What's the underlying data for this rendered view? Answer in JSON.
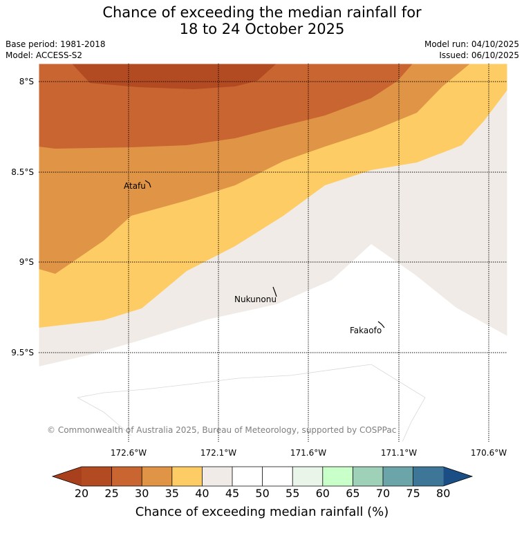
{
  "header": {
    "title_line1": "Chance of exceeding the median rainfall for",
    "title_line2": "18 to 24 October 2025",
    "base_period": "Base period: 1981-2018",
    "model": "Model: ACCESS-S2",
    "model_run": "Model run: 04/10/2025",
    "issued": "Issued: 06/10/2025"
  },
  "map": {
    "latitude_labels": [
      "8°S",
      "8.5°S",
      "9°S",
      "9.5°S"
    ],
    "longitude_labels": [
      "172.6°W",
      "172.1°W",
      "171.6°W",
      "171.1°W",
      "170.6°W"
    ],
    "places": [
      "Atafu",
      "Nukunonu",
      "Fakaofo"
    ],
    "copyright": "© Commonwealth of Australia 2025, Bureau of Meteorology, supported by COSPPac"
  },
  "colorbar": {
    "label": "Chance of exceeding median rainfall (%)",
    "ticks": [
      "20",
      "25",
      "30",
      "35",
      "40",
      "45",
      "50",
      "55",
      "60",
      "65",
      "70",
      "75",
      "80"
    ],
    "colors": {
      "below_20": "#a8401e",
      "c20_25": "#b24b22",
      "c25_30": "#c96531",
      "c30_35": "#e09446",
      "c35_40": "#fecc65",
      "c40_45": "#f0ebe6",
      "c45_55": "#ffffff",
      "c55_60": "#e9f5e9",
      "c60_65": "#c9ffc9",
      "c65_70": "#9fd0b8",
      "c70_75": "#6ba5a9",
      "c75_80": "#3e7697",
      "above_80": "#1a4e85"
    }
  }
}
